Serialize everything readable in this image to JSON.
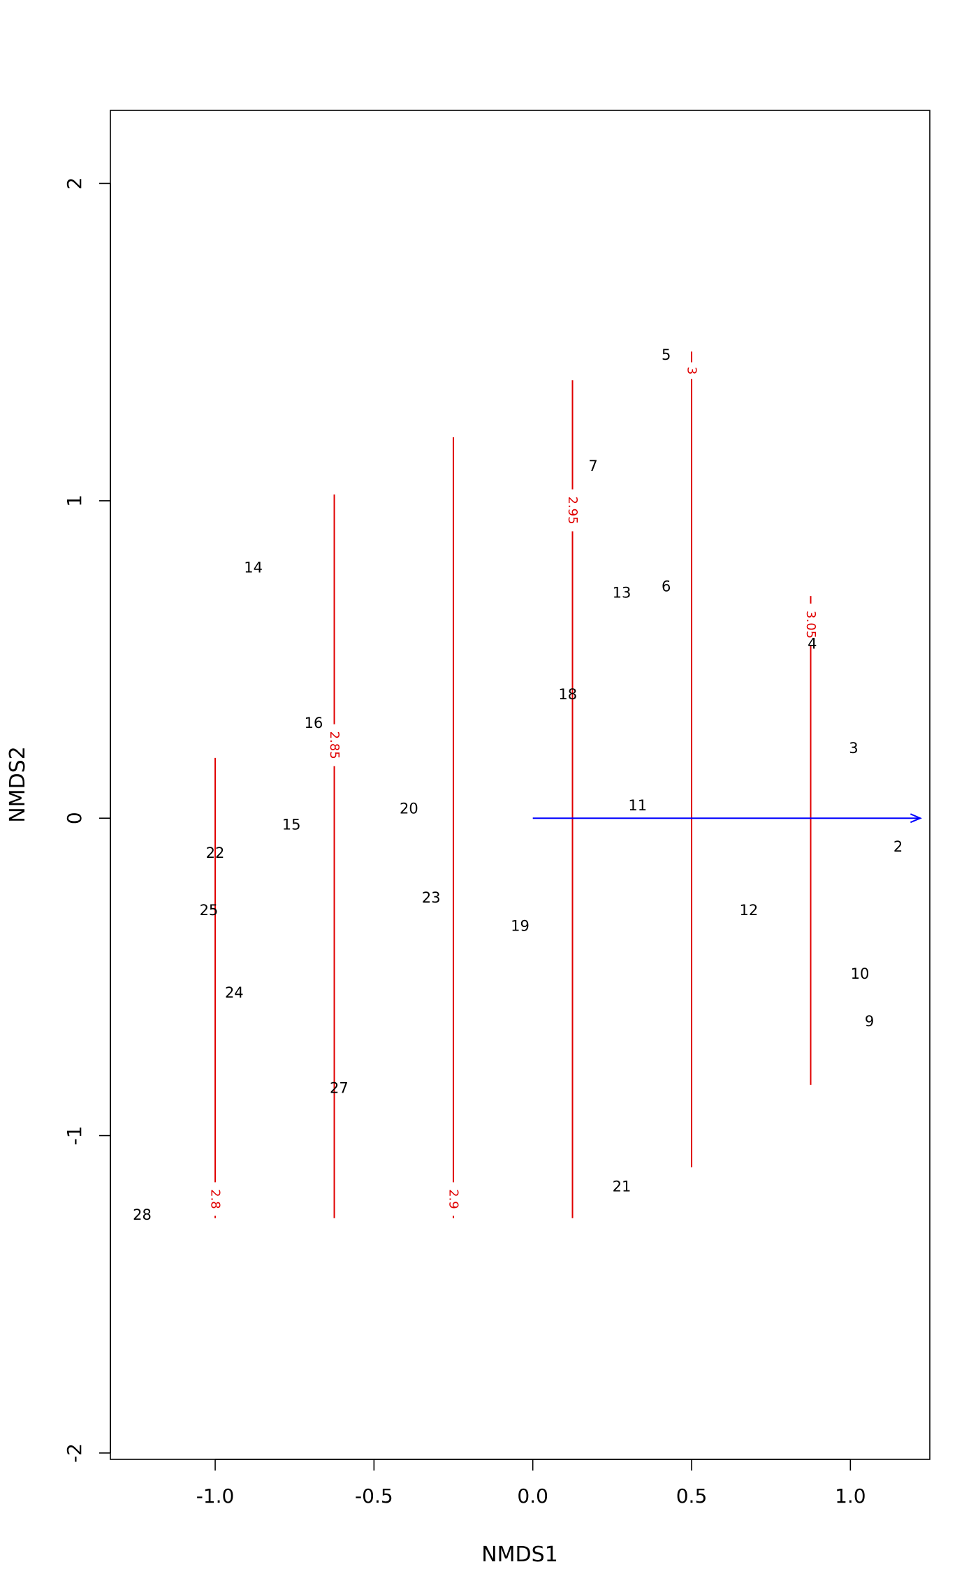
{
  "chart_data": {
    "type": "scatter",
    "title": "",
    "xlabel": "NMDS1",
    "ylabel": "NMDS2",
    "xlim": [
      -1.33,
      1.25
    ],
    "ylim": [
      -2.02,
      2.23
    ],
    "grid": false,
    "x_ticks": [
      {
        "value": -1.0,
        "label": "-1.0"
      },
      {
        "value": -0.5,
        "label": "-0.5"
      },
      {
        "value": 0.0,
        "label": "0.0"
      },
      {
        "value": 0.5,
        "label": "0.5"
      },
      {
        "value": 1.0,
        "label": "1.0"
      }
    ],
    "y_ticks": [
      {
        "value": -2,
        "label": "-2"
      },
      {
        "value": -1,
        "label": "-1"
      },
      {
        "value": 0,
        "label": "0"
      },
      {
        "value": 1,
        "label": "1"
      },
      {
        "value": 2,
        "label": "2"
      }
    ],
    "points": [
      {
        "label": "2",
        "x": 1.15,
        "y": -0.09
      },
      {
        "label": "3",
        "x": 1.01,
        "y": 0.22
      },
      {
        "label": "4",
        "x": 0.88,
        "y": 0.55
      },
      {
        "label": "5",
        "x": 0.42,
        "y": 1.46
      },
      {
        "label": "6",
        "x": 0.42,
        "y": 0.73
      },
      {
        "label": "7",
        "x": 0.19,
        "y": 1.11
      },
      {
        "label": "9",
        "x": 1.06,
        "y": -0.64
      },
      {
        "label": "10",
        "x": 1.03,
        "y": -0.49
      },
      {
        "label": "11",
        "x": 0.33,
        "y": 0.04
      },
      {
        "label": "12",
        "x": 0.68,
        "y": -0.29
      },
      {
        "label": "13",
        "x": 0.28,
        "y": 0.71
      },
      {
        "label": "14",
        "x": -0.88,
        "y": 0.79
      },
      {
        "label": "15",
        "x": -0.76,
        "y": -0.02
      },
      {
        "label": "16",
        "x": -0.69,
        "y": 0.3
      },
      {
        "label": "18",
        "x": 0.11,
        "y": 0.39
      },
      {
        "label": "19",
        "x": -0.04,
        "y": -0.34
      },
      {
        "label": "20",
        "x": -0.39,
        "y": 0.03
      },
      {
        "label": "21",
        "x": 0.28,
        "y": -1.16
      },
      {
        "label": "22",
        "x": -1.0,
        "y": -0.11
      },
      {
        "label": "23",
        "x": -0.32,
        "y": -0.25
      },
      {
        "label": "24",
        "x": -0.94,
        "y": -0.55
      },
      {
        "label": "25",
        "x": -1.02,
        "y": -0.29
      },
      {
        "label": "27",
        "x": -0.61,
        "y": -0.85
      },
      {
        "label": "28",
        "x": -1.23,
        "y": -1.25
      }
    ],
    "contours": [
      {
        "label": "2.8",
        "x": -1.0,
        "y_bottom": -1.26,
        "y_top": 0.19,
        "label_y": -1.2,
        "color": "#e00000"
      },
      {
        "label": "2.85",
        "x": -0.625,
        "y_bottom": -1.26,
        "y_top": 1.02,
        "label_y": 0.23,
        "color": "#e00000"
      },
      {
        "label": "2.9",
        "x": -0.25,
        "y_bottom": -1.26,
        "y_top": 1.2,
        "label_y": -1.2,
        "color": "#e00000"
      },
      {
        "label": "2.95",
        "x": 0.125,
        "y_bottom": -1.26,
        "y_top": 1.38,
        "label_y": 0.97,
        "color": "#e00000"
      },
      {
        "label": "3",
        "x": 0.5,
        "y_bottom": -1.1,
        "y_top": 1.47,
        "label_y": 1.41,
        "color": "#e00000"
      },
      {
        "label": "3.05",
        "x": 0.875,
        "y_bottom": -0.84,
        "y_top": 0.7,
        "label_y": 0.61,
        "color": "#e00000"
      }
    ],
    "arrow": {
      "x0": 0.0,
      "y0": 0.0,
      "x1": 1.22,
      "y1": 0.0,
      "color": "#0000ff"
    }
  }
}
